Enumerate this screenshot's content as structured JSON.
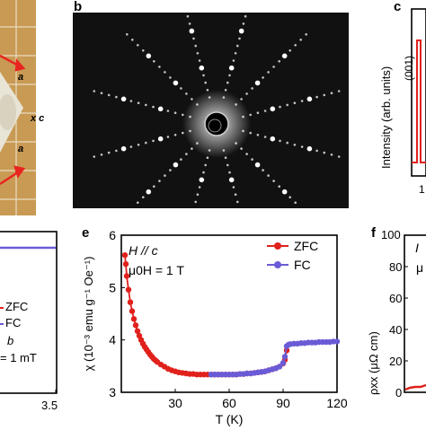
{
  "panels": {
    "a": {
      "letter": "",
      "labels": {
        "a1": "a",
        "a2": "a",
        "c": "c",
        "xc": "x c"
      }
    },
    "b": {
      "letter": "b"
    },
    "c": {
      "letter": "c",
      "ylabel": "Intensity (arb. units)",
      "peak_label": "(001)",
      "tick_partial": "1"
    },
    "d": {
      "letter": "",
      "x_ticks": [
        "3.5"
      ],
      "legend": [
        "ZFC",
        "FC"
      ],
      "annotation1": "b",
      "annotation2": "= 1 mT"
    },
    "e": {
      "letter": "e"
    },
    "f": {
      "letter": "f",
      "ylabel": "ρxx (μΩ cm)",
      "y_ticks": [
        "0",
        "20",
        "40",
        "60",
        "80",
        "100"
      ],
      "partial_labels": [
        "I",
        "μ"
      ]
    }
  },
  "colors": {
    "zfc": "#e0211c",
    "fc": "#6a5bd6",
    "photo_bg": "#c99a54",
    "diffraction_bg": "#111111"
  },
  "chart_data": {
    "type": "scatter",
    "panel": "e",
    "annotation_line1": "H // c",
    "annotation_line2": "μ0H = 1 T",
    "xlabel": "T (K)",
    "ylabel": "χ (10⁻³ emu g⁻¹ Oe⁻¹)",
    "xlim": [
      0,
      120
    ],
    "ylim": [
      3,
      6
    ],
    "x_ticks": [
      "30",
      "60",
      "90",
      "120"
    ],
    "y_ticks": [
      "3",
      "4",
      "5",
      "6"
    ],
    "legend_position": "top-right",
    "series": [
      {
        "name": "ZFC",
        "color": "#e0211c",
        "x": [
          2,
          2.5,
          3,
          4,
          5,
          6,
          7,
          8,
          9,
          10,
          11,
          12,
          13,
          14,
          15,
          16,
          17,
          18,
          19,
          20,
          22,
          24,
          26,
          28,
          30,
          32,
          34,
          36,
          38,
          40,
          42,
          44,
          46,
          48,
          50,
          52,
          54,
          56,
          58,
          60,
          62,
          64,
          66,
          68,
          70,
          72,
          74,
          76,
          78,
          80,
          82,
          84,
          86,
          88,
          90,
          91,
          92
        ],
        "y": [
          5.62,
          5.45,
          5.22,
          4.96,
          4.72,
          4.55,
          4.4,
          4.28,
          4.17,
          4.08,
          4.0,
          3.93,
          3.87,
          3.82,
          3.77,
          3.72,
          3.68,
          3.64,
          3.61,
          3.58,
          3.53,
          3.49,
          3.45,
          3.42,
          3.4,
          3.38,
          3.37,
          3.36,
          3.35,
          3.35,
          3.34,
          3.34,
          3.34,
          3.34,
          3.34,
          3.34,
          3.34,
          3.34,
          3.34,
          3.34,
          3.34,
          3.34,
          3.35,
          3.35,
          3.36,
          3.36,
          3.37,
          3.38,
          3.39,
          3.4,
          3.42,
          3.44,
          3.46,
          3.49,
          3.55,
          3.62,
          3.8
        ]
      },
      {
        "name": "FC",
        "color": "#6a5bd6",
        "x": [
          50,
          52,
          54,
          56,
          58,
          60,
          62,
          64,
          66,
          68,
          70,
          72,
          74,
          76,
          78,
          80,
          82,
          84,
          86,
          88,
          90,
          91,
          92,
          93,
          94,
          96,
          98,
          100,
          102,
          104,
          106,
          108,
          110,
          112,
          114,
          116,
          118,
          120
        ],
        "y": [
          3.34,
          3.34,
          3.34,
          3.34,
          3.34,
          3.34,
          3.34,
          3.34,
          3.35,
          3.35,
          3.36,
          3.36,
          3.37,
          3.38,
          3.39,
          3.4,
          3.42,
          3.44,
          3.46,
          3.49,
          3.56,
          3.68,
          3.88,
          3.91,
          3.92,
          3.93,
          3.93,
          3.94,
          3.94,
          3.95,
          3.95,
          3.95,
          3.96,
          3.96,
          3.96,
          3.96,
          3.97,
          3.97
        ]
      }
    ]
  }
}
